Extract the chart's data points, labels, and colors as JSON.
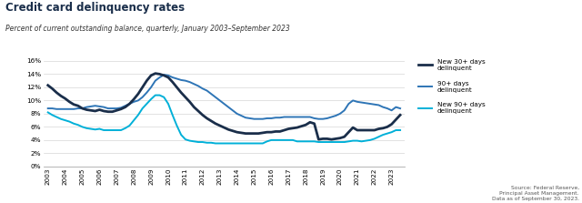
{
  "title": "Credit card delinquency rates",
  "subtitle": "Percent of current outstanding balance, quarterly, January 2003–September 2023",
  "source": "Source: Federal Reserve,\nPrincipal Asset Management.\nData as of September 30, 2023.",
  "ylim": [
    0,
    16
  ],
  "yticks": [
    0,
    2,
    4,
    6,
    8,
    10,
    12,
    14,
    16
  ],
  "background_color": "#ffffff",
  "series": {
    "new30": {
      "label": "New 30+ days\ndelinquent",
      "color": "#1a2e4a",
      "linewidth": 2.0,
      "zorder": 3
    },
    "days90": {
      "label": "90+ days\ndelinquent",
      "color": "#2e75b6",
      "linewidth": 1.4,
      "zorder": 2
    },
    "new90": {
      "label": "New 90+ days\ndelinquent",
      "color": "#00b0d8",
      "linewidth": 1.4,
      "zorder": 1
    }
  },
  "x_labels": [
    "2003",
    "2004",
    "2005",
    "2006",
    "2007",
    "2008",
    "2009",
    "2010",
    "2011",
    "2012",
    "2013",
    "2014",
    "2015",
    "2016",
    "2017",
    "2018",
    "2019",
    "2020",
    "2021",
    "2022",
    "2023"
  ],
  "quarters": {
    "new30": [
      12.3,
      11.8,
      11.2,
      10.7,
      10.3,
      9.8,
      9.4,
      9.2,
      8.8,
      8.6,
      8.5,
      8.4,
      8.6,
      8.4,
      8.3,
      8.3,
      8.5,
      8.7,
      9.0,
      9.5,
      10.2,
      11.0,
      12.0,
      13.0,
      13.8,
      14.1,
      14.0,
      13.8,
      13.5,
      12.8,
      12.0,
      11.2,
      10.5,
      9.8,
      9.0,
      8.4,
      7.8,
      7.3,
      6.9,
      6.5,
      6.2,
      5.9,
      5.6,
      5.4,
      5.2,
      5.1,
      5.0,
      5.0,
      5.0,
      5.0,
      5.1,
      5.2,
      5.2,
      5.3,
      5.3,
      5.5,
      5.7,
      5.8,
      5.9,
      6.1,
      6.3,
      6.7,
      6.5,
      4.1,
      4.2,
      4.2,
      4.1,
      4.2,
      4.3,
      4.5,
      5.2,
      5.9,
      5.5,
      5.5,
      5.5,
      5.5,
      5.5,
      5.7,
      5.8,
      6.0,
      6.4,
      7.1,
      7.8
    ],
    "days90": [
      8.8,
      8.8,
      8.7,
      8.7,
      8.7,
      8.7,
      8.7,
      8.8,
      8.8,
      9.0,
      9.1,
      9.2,
      9.1,
      9.0,
      8.8,
      8.8,
      8.8,
      8.9,
      9.2,
      9.5,
      9.8,
      10.0,
      10.5,
      11.2,
      12.0,
      13.0,
      13.5,
      13.9,
      13.8,
      13.5,
      13.3,
      13.1,
      13.0,
      12.8,
      12.5,
      12.2,
      11.8,
      11.5,
      11.0,
      10.5,
      10.0,
      9.5,
      9.0,
      8.5,
      8.0,
      7.7,
      7.4,
      7.3,
      7.2,
      7.2,
      7.2,
      7.3,
      7.3,
      7.4,
      7.4,
      7.5,
      7.5,
      7.5,
      7.5,
      7.5,
      7.5,
      7.5,
      7.3,
      7.2,
      7.2,
      7.3,
      7.5,
      7.7,
      8.0,
      8.5,
      9.5,
      10.0,
      9.8,
      9.7,
      9.6,
      9.5,
      9.4,
      9.3,
      9.0,
      8.8,
      8.5,
      9.0,
      8.8
    ],
    "new90": [
      8.2,
      7.8,
      7.5,
      7.2,
      7.0,
      6.8,
      6.5,
      6.3,
      6.0,
      5.8,
      5.7,
      5.6,
      5.7,
      5.5,
      5.5,
      5.5,
      5.5,
      5.5,
      5.8,
      6.2,
      7.0,
      7.8,
      8.8,
      9.5,
      10.2,
      10.8,
      10.8,
      10.5,
      9.5,
      7.8,
      6.2,
      4.8,
      4.1,
      3.9,
      3.8,
      3.7,
      3.7,
      3.6,
      3.6,
      3.5,
      3.5,
      3.5,
      3.5,
      3.5,
      3.5,
      3.5,
      3.5,
      3.5,
      3.5,
      3.5,
      3.5,
      3.8,
      4.0,
      4.0,
      4.0,
      4.0,
      4.0,
      4.0,
      3.8,
      3.8,
      3.8,
      3.8,
      3.8,
      3.7,
      3.7,
      3.7,
      3.7,
      3.7,
      3.7,
      3.7,
      3.8,
      3.9,
      3.9,
      3.8,
      3.9,
      4.0,
      4.2,
      4.5,
      4.8,
      5.0,
      5.2,
      5.5,
      5.5
    ]
  }
}
